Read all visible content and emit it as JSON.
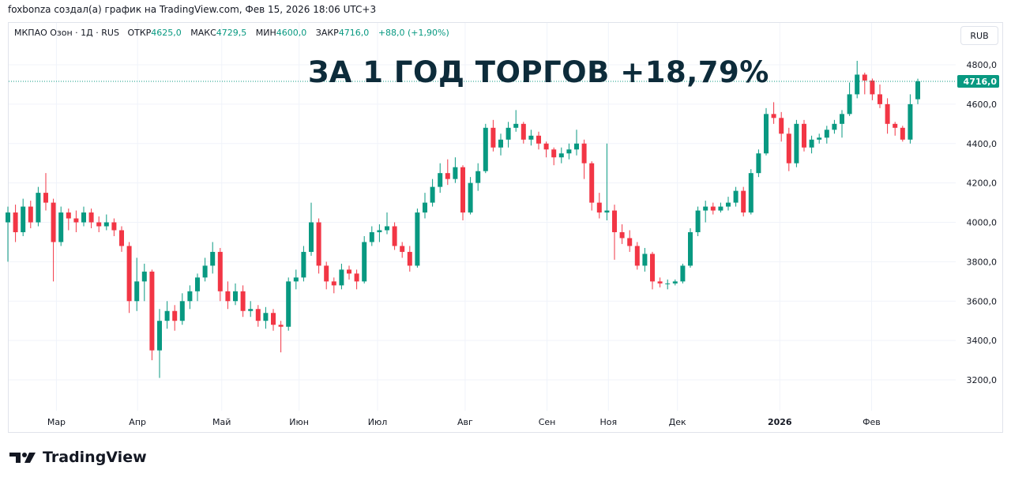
{
  "header": {
    "credit": "foxbonza создал(а) график на TradingView.com, Фев 15, 2026 18:06 UTC+3",
    "symbol": "МКПАО Озон · 1Д · RUS",
    "open_label": "ОТКР",
    "open": "4625,0",
    "high_label": "МАКС",
    "high": "4729,5",
    "low_label": "МИН",
    "low": "4600,0",
    "close_label": "ЗАКР",
    "close": "4716,0",
    "change": "+88,0 (+1,90%)",
    "currency": "RUB"
  },
  "annotation": "ЗА 1 ГОД ТОРГОВ +18,79%",
  "footer": {
    "brand": "TradingView"
  },
  "colors": {
    "up": "#089981",
    "down": "#f23645",
    "title": "#0d2b3a",
    "grid": "#f0f3fa"
  },
  "chart_data": {
    "type": "candlestick",
    "title": "ЗА 1 ГОД ТОРГОВ +18,79%",
    "ylim": [
      3100,
      4900
    ],
    "y_ticks": [
      3200,
      3400,
      3600,
      3800,
      4000,
      4200,
      4400,
      4600,
      4800
    ],
    "y_tick_labels": [
      "3200,0",
      "3400,0",
      "3600,0",
      "3800,0",
      "4000,0",
      "4200,0",
      "4400,0",
      "4600,0",
      "4800,0"
    ],
    "last_price": 4716,
    "last_price_label": "4716,0",
    "x_ticks": [
      {
        "label": "Мар",
        "index": 6.4
      },
      {
        "label": "Апр",
        "index": 17.1
      },
      {
        "label": "Май",
        "index": 28.2
      },
      {
        "label": "Июн",
        "index": 38.4
      },
      {
        "label": "Июл",
        "index": 48.75
      },
      {
        "label": "Авг",
        "index": 60.3
      },
      {
        "label": "Сен",
        "index": 71.1
      },
      {
        "label": "Ноя",
        "index": 79.2
      },
      {
        "label": "Дек",
        "index": 88.3
      },
      {
        "label": "2026",
        "index": 101.8,
        "bold": true
      },
      {
        "label": "Фев",
        "index": 113.9
      }
    ],
    "ohlc": [
      [
        4000,
        4080,
        3800,
        4050
      ],
      [
        4050,
        4090,
        3900,
        3950
      ],
      [
        3950,
        4120,
        3930,
        4080
      ],
      [
        4080,
        4110,
        3970,
        4000
      ],
      [
        4000,
        4180,
        3980,
        4150
      ],
      [
        4150,
        4250,
        4060,
        4100
      ],
      [
        4100,
        4120,
        3700,
        3900
      ],
      [
        3900,
        4080,
        3880,
        4050
      ],
      [
        4050,
        4070,
        3960,
        4020
      ],
      [
        4020,
        4060,
        3950,
        4000
      ],
      [
        4000,
        4080,
        3980,
        4050
      ],
      [
        4050,
        4070,
        3970,
        4000
      ],
      [
        4000,
        4030,
        3950,
        3980
      ],
      [
        3980,
        4040,
        3960,
        4000
      ],
      [
        4000,
        4020,
        3930,
        3960
      ],
      [
        3960,
        3980,
        3850,
        3880
      ],
      [
        3880,
        3900,
        3540,
        3600
      ],
      [
        3600,
        3820,
        3550,
        3700
      ],
      [
        3700,
        3790,
        3600,
        3750
      ],
      [
        3750,
        3760,
        3300,
        3350
      ],
      [
        3350,
        3560,
        3210,
        3500
      ],
      [
        3500,
        3600,
        3460,
        3550
      ],
      [
        3550,
        3580,
        3450,
        3500
      ],
      [
        3500,
        3640,
        3480,
        3600
      ],
      [
        3600,
        3680,
        3560,
        3650
      ],
      [
        3650,
        3740,
        3600,
        3720
      ],
      [
        3720,
        3820,
        3700,
        3780
      ],
      [
        3780,
        3900,
        3740,
        3850
      ],
      [
        3850,
        3870,
        3600,
        3650
      ],
      [
        3650,
        3700,
        3560,
        3600
      ],
      [
        3600,
        3690,
        3580,
        3650
      ],
      [
        3650,
        3680,
        3520,
        3550
      ],
      [
        3550,
        3600,
        3520,
        3560
      ],
      [
        3560,
        3580,
        3470,
        3500
      ],
      [
        3500,
        3570,
        3460,
        3540
      ],
      [
        3540,
        3560,
        3450,
        3480
      ],
      [
        3480,
        3500,
        3340,
        3470
      ],
      [
        3470,
        3720,
        3450,
        3700
      ],
      [
        3700,
        3760,
        3660,
        3720
      ],
      [
        3720,
        3880,
        3700,
        3850
      ],
      [
        3850,
        4100,
        3830,
        4000
      ],
      [
        4000,
        4020,
        3740,
        3780
      ],
      [
        3780,
        3800,
        3660,
        3700
      ],
      [
        3700,
        3720,
        3640,
        3680
      ],
      [
        3680,
        3790,
        3660,
        3760
      ],
      [
        3760,
        3780,
        3710,
        3740
      ],
      [
        3740,
        3760,
        3660,
        3700
      ],
      [
        3700,
        3930,
        3690,
        3900
      ],
      [
        3900,
        3980,
        3880,
        3950
      ],
      [
        3950,
        3990,
        3900,
        3960
      ],
      [
        3960,
        4050,
        3940,
        3980
      ],
      [
        3980,
        4000,
        3860,
        3880
      ],
      [
        3880,
        3900,
        3820,
        3850
      ],
      [
        3850,
        3880,
        3750,
        3780
      ],
      [
        3780,
        4070,
        3770,
        4050
      ],
      [
        4050,
        4150,
        4020,
        4100
      ],
      [
        4100,
        4220,
        4080,
        4180
      ],
      [
        4180,
        4300,
        4150,
        4250
      ],
      [
        4250,
        4320,
        4190,
        4220
      ],
      [
        4220,
        4330,
        4200,
        4280
      ],
      [
        4280,
        4290,
        4010,
        4050
      ],
      [
        4050,
        4230,
        4040,
        4200
      ],
      [
        4200,
        4300,
        4160,
        4260
      ],
      [
        4260,
        4500,
        4250,
        4480
      ],
      [
        4480,
        4520,
        4360,
        4380
      ],
      [
        4380,
        4450,
        4340,
        4420
      ],
      [
        4420,
        4510,
        4380,
        4480
      ],
      [
        4480,
        4570,
        4460,
        4500
      ],
      [
        4500,
        4510,
        4400,
        4420
      ],
      [
        4420,
        4470,
        4390,
        4440
      ],
      [
        4440,
        4460,
        4370,
        4400
      ],
      [
        4400,
        4410,
        4330,
        4370
      ],
      [
        4370,
        4380,
        4290,
        4330
      ],
      [
        4330,
        4380,
        4300,
        4350
      ],
      [
        4350,
        4400,
        4320,
        4370
      ],
      [
        4370,
        4470,
        4340,
        4400
      ],
      [
        4400,
        4420,
        4220,
        4300
      ],
      [
        4300,
        4310,
        4060,
        4100
      ],
      [
        4100,
        4150,
        4020,
        4050
      ],
      [
        4050,
        4400,
        4010,
        4060
      ],
      [
        4060,
        4090,
        3810,
        3950
      ],
      [
        3950,
        3990,
        3890,
        3920
      ],
      [
        3920,
        3960,
        3850,
        3880
      ],
      [
        3880,
        3900,
        3760,
        3780
      ],
      [
        3780,
        3870,
        3750,
        3840
      ],
      [
        3840,
        3850,
        3660,
        3700
      ],
      [
        3700,
        3720,
        3670,
        3690
      ],
      [
        3690,
        3710,
        3660,
        3690
      ],
      [
        3690,
        3710,
        3680,
        3700
      ],
      [
        3700,
        3790,
        3690,
        3780
      ],
      [
        3780,
        3970,
        3770,
        3950
      ],
      [
        3950,
        4080,
        3930,
        4060
      ],
      [
        4060,
        4110,
        4000,
        4080
      ],
      [
        4080,
        4100,
        4040,
        4060
      ],
      [
        4060,
        4100,
        4050,
        4080
      ],
      [
        4080,
        4130,
        4060,
        4100
      ],
      [
        4100,
        4180,
        4080,
        4160
      ],
      [
        4160,
        4180,
        4030,
        4050
      ],
      [
        4050,
        4270,
        4040,
        4250
      ],
      [
        4250,
        4370,
        4230,
        4350
      ],
      [
        4350,
        4580,
        4340,
        4550
      ],
      [
        4550,
        4610,
        4500,
        4530
      ],
      [
        4530,
        4560,
        4410,
        4450
      ],
      [
        4450,
        4480,
        4260,
        4300
      ],
      [
        4300,
        4520,
        4280,
        4500
      ],
      [
        4500,
        4520,
        4360,
        4380
      ],
      [
        4380,
        4440,
        4350,
        4420
      ],
      [
        4420,
        4450,
        4400,
        4430
      ],
      [
        4430,
        4490,
        4400,
        4470
      ],
      [
        4470,
        4520,
        4450,
        4500
      ],
      [
        4500,
        4570,
        4430,
        4550
      ],
      [
        4550,
        4710,
        4540,
        4650
      ],
      [
        4650,
        4820,
        4630,
        4750
      ],
      [
        4750,
        4760,
        4650,
        4720
      ],
      [
        4720,
        4730,
        4620,
        4650
      ],
      [
        4650,
        4700,
        4580,
        4600
      ],
      [
        4600,
        4630,
        4450,
        4500
      ],
      [
        4500,
        4510,
        4440,
        4480
      ],
      [
        4480,
        4490,
        4410,
        4420
      ],
      [
        4420,
        4650,
        4400,
        4600
      ],
      [
        4625,
        4729.5,
        4600,
        4716
      ]
    ]
  }
}
